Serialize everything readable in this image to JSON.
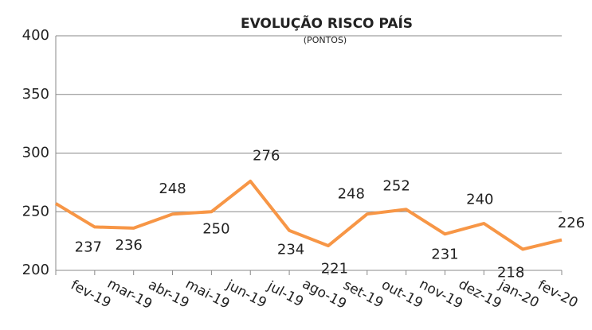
{
  "chart_data": {
    "type": "line",
    "title": "EVOLUÇÃO RISCO PAÍS",
    "subtitle": "(PONTOS)",
    "categories": [
      null,
      "fev-19",
      "mar-19",
      "abr-19",
      "mai-19",
      "jun-19",
      "jul-19",
      "ago-19",
      "set-19",
      "out-19",
      "nov-19",
      "dez-19",
      "jan-20",
      "fev-20"
    ],
    "series": [
      {
        "name": "Risco País",
        "color": "#f79646",
        "values": [
          257,
          237,
          236,
          248,
          250,
          276,
          234,
          221,
          248,
          252,
          231,
          240,
          218,
          226
        ],
        "value_labels": [
          null,
          "237",
          "236",
          "248",
          "250",
          "276",
          "234",
          "221",
          "248",
          "252",
          "231",
          "240",
          "218",
          "226"
        ]
      }
    ],
    "ylim": [
      200,
      400
    ],
    "yticks": [
      200,
      250,
      300,
      350,
      400
    ],
    "grid": true
  }
}
